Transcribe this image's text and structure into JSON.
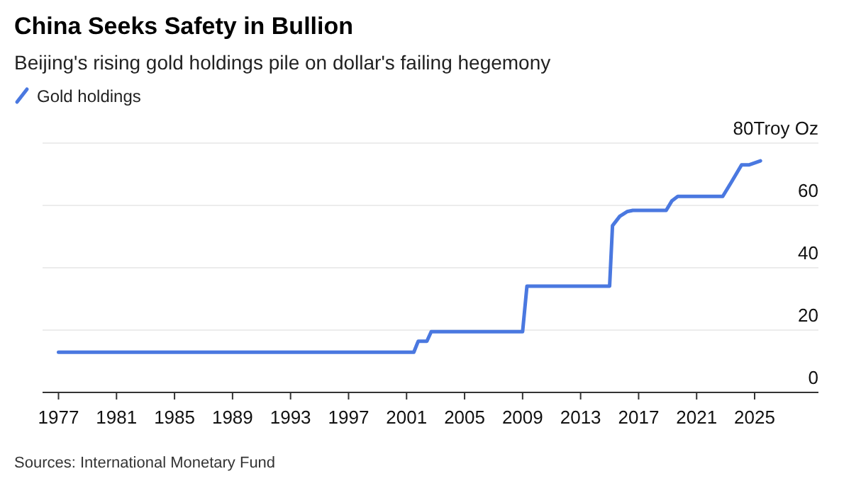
{
  "chart_data": {
    "type": "line",
    "title": "China Seeks Safety in Bullion",
    "subtitle": "Beijing's rising gold holdings pile on dollar's failing hegemony",
    "annotations": [
      "Sources: International Monetary Fund"
    ],
    "series": [
      {
        "name": "Gold holdings",
        "color": "#4a78e0",
        "x": [
          1977,
          2001.5,
          2001.8,
          2002.4,
          2002.7,
          2009.0,
          2009.3,
          2015.0,
          2015.2,
          2015.7,
          2016.2,
          2016.6,
          2018.9,
          2019.3,
          2019.7,
          2022.8,
          2023.4,
          2024.1,
          2024.6,
          2025.4
        ],
        "values": [
          12.9,
          12.9,
          16.4,
          16.4,
          19.5,
          19.5,
          34.1,
          34.1,
          53.5,
          56.5,
          58,
          58.4,
          58.4,
          61.5,
          62.9,
          62.9,
          67.5,
          73,
          73,
          74.3
        ]
      }
    ],
    "xlim": [
      1975.9,
      2029.4
    ],
    "xticks": [
      1977,
      1981,
      1985,
      1989,
      1993,
      1997,
      2001,
      2005,
      2009,
      2013,
      2017,
      2021,
      2025
    ],
    "ylim": [
      0,
      80
    ],
    "yticks": [
      0,
      20,
      40,
      60,
      {
        "value": 80,
        "label": "80Troy Oz"
      }
    ],
    "grid": "y",
    "legend": "top left",
    "line_style": "solid",
    "marker": "none"
  }
}
